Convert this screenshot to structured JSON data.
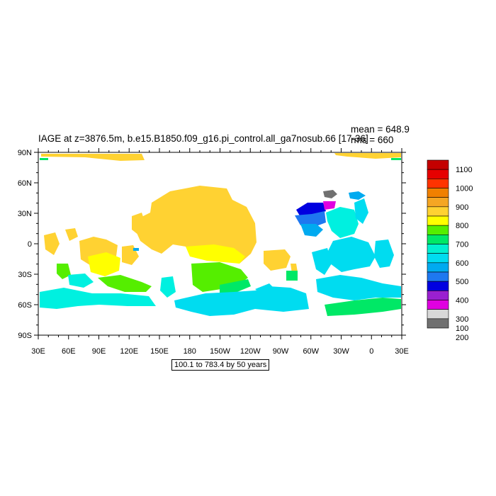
{
  "title": "IAGE at z=3876.5m, b.e15.B1850.f09_g16.pi_control.all_ga7nosub.66 [17-36]",
  "stats": {
    "mean": "mean = 648.9",
    "rms": "rms = 660"
  },
  "range_label": "100.1 to 783.4 by 50 years",
  "lat_ticks": [
    "90N",
    "60N",
    "30N",
    "0",
    "30S",
    "60S",
    "90S"
  ],
  "lon_ticks": [
    "30E",
    "60E",
    "90E",
    "120E",
    "150E",
    "180",
    "150W",
    "120W",
    "90W",
    "60W",
    "30W",
    "0",
    "30E"
  ],
  "colorbar": {
    "labels": [
      "1100",
      "1000",
      "900",
      "800",
      "700",
      "600",
      "500",
      "400",
      "300",
      "200",
      "100"
    ],
    "colors": [
      "#c40000",
      "#e60000",
      "#ff3300",
      "#f08000",
      "#f5a623",
      "#ffd232",
      "#ffff00",
      "#55ee00",
      "#00e866",
      "#00f0d0",
      "#00dcf0",
      "#00aaf0",
      "#1e78f0",
      "#0000e0",
      "#9a20d0",
      "#e000e0",
      "#d8d8d8",
      "#707070"
    ]
  },
  "region_colors": {
    "c750": "#ffd232",
    "c800": "#f5c12e",
    "c700": "#ffff00",
    "c650": "#55ee00",
    "c600": "#00e866",
    "c500": "#00f0e0",
    "c450": "#00dcf0",
    "c400": "#00aaf0",
    "c300": "#1e78f0",
    "c250": "#0000e0",
    "c200": "#e000e0",
    "c100": "#707070"
  }
}
